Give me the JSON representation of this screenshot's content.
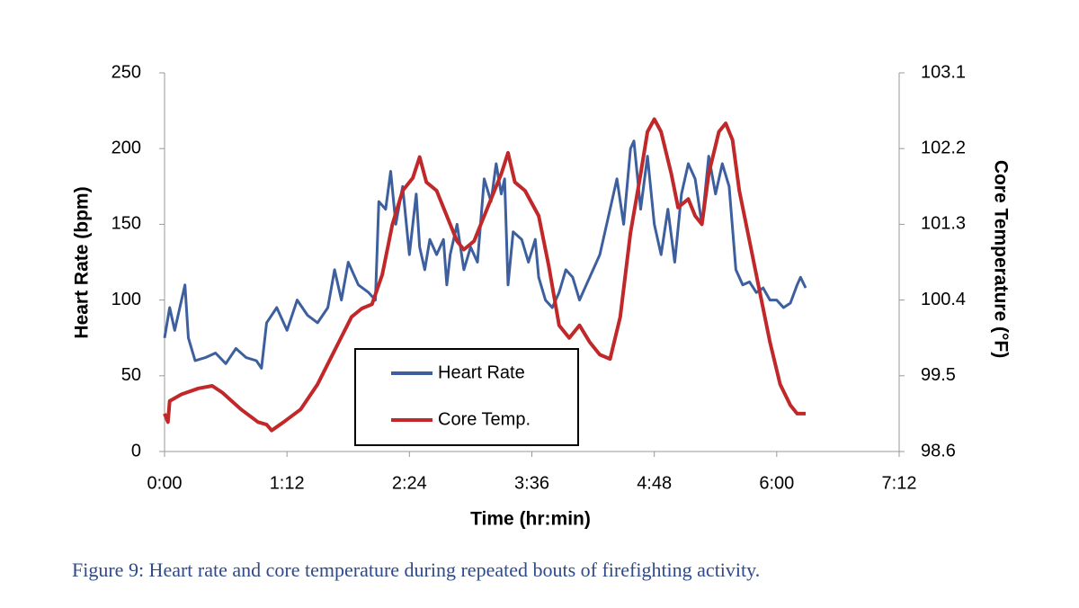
{
  "chart_data": {
    "type": "line",
    "caption": "Figure 9: Heart rate and core temperature during repeated bouts of firefighting activity.",
    "xlabel": "Time (hr:min)",
    "ylabel": "Heart Rate (bpm)",
    "y2label": "Core Temperature (°F)",
    "xlim": [
      0,
      432
    ],
    "xticks": [
      {
        "value": 0,
        "label": "0:00"
      },
      {
        "value": 72,
        "label": "1:12"
      },
      {
        "value": 144,
        "label": "2:24"
      },
      {
        "value": 216,
        "label": "3:36"
      },
      {
        "value": 288,
        "label": "4:48"
      },
      {
        "value": 360,
        "label": "6:00"
      },
      {
        "value": 432,
        "label": "7:12"
      }
    ],
    "ylim": [
      0,
      250
    ],
    "yticks": [
      0,
      50,
      100,
      150,
      200,
      250
    ],
    "y2lim": [
      98.6,
      103.1
    ],
    "y2ticks": [
      98.6,
      99.5,
      100.4,
      101.3,
      102.2,
      103.1
    ],
    "legend": "lower center",
    "series": [
      {
        "name": "Heart Rate",
        "color": "#3d5f9e",
        "x": [
          0,
          3,
          6,
          9,
          12,
          14,
          18,
          24,
          30,
          36,
          42,
          48,
          54,
          57,
          60,
          66,
          72,
          78,
          84,
          90,
          96,
          100,
          104,
          108,
          114,
          120,
          124,
          126,
          130,
          133,
          136,
          140,
          144,
          148,
          150,
          153,
          156,
          160,
          164,
          166,
          168,
          172,
          176,
          180,
          184,
          188,
          192,
          195,
          198,
          200,
          202,
          205,
          210,
          214,
          218,
          220,
          224,
          228,
          232,
          236,
          240,
          244,
          248,
          252,
          256,
          260,
          264,
          266,
          270,
          274,
          276,
          280,
          284,
          288,
          292,
          296,
          300,
          304,
          308,
          312,
          316,
          320,
          324,
          328,
          332,
          336,
          340,
          344,
          348,
          352,
          356,
          360,
          364,
          368,
          372,
          374,
          377
        ],
        "values": [
          75,
          95,
          80,
          95,
          110,
          75,
          60,
          62,
          65,
          58,
          68,
          62,
          60,
          55,
          85,
          95,
          80,
          100,
          90,
          85,
          95,
          120,
          100,
          125,
          110,
          105,
          100,
          165,
          160,
          185,
          150,
          175,
          130,
          170,
          135,
          120,
          140,
          130,
          140,
          110,
          130,
          150,
          120,
          135,
          125,
          180,
          165,
          190,
          170,
          180,
          110,
          145,
          140,
          125,
          140,
          115,
          100,
          95,
          105,
          120,
          115,
          100,
          110,
          120,
          130,
          150,
          170,
          180,
          150,
          200,
          205,
          160,
          195,
          150,
          130,
          160,
          125,
          170,
          190,
          180,
          150,
          195,
          170,
          190,
          175,
          120,
          110,
          112,
          105,
          108,
          100,
          100,
          95,
          98,
          110,
          115,
          108
        ]
      },
      {
        "name": "Core Temp.",
        "color": "#c0282a",
        "axis": "y2",
        "x": [
          0,
          2,
          3,
          10,
          20,
          28,
          34,
          45,
          55,
          60,
          63,
          70,
          80,
          90,
          100,
          110,
          116,
          122,
          128,
          134,
          140,
          146,
          150,
          154,
          160,
          166,
          172,
          176,
          182,
          190,
          198,
          202,
          206,
          212,
          220,
          226,
          232,
          238,
          244,
          250,
          256,
          262,
          268,
          274,
          280,
          284,
          288,
          292,
          298,
          302,
          308,
          312,
          316,
          320,
          326,
          330,
          334,
          338,
          344,
          350,
          356,
          362,
          368,
          372,
          377
        ],
        "values": [
          99.05,
          98.95,
          99.2,
          99.28,
          99.35,
          99.38,
          99.3,
          99.1,
          98.95,
          98.92,
          98.85,
          98.95,
          99.1,
          99.4,
          99.8,
          100.2,
          100.3,
          100.35,
          100.7,
          101.3,
          101.7,
          101.85,
          102.1,
          101.8,
          101.7,
          101.4,
          101.1,
          101.0,
          101.1,
          101.5,
          101.9,
          102.15,
          101.8,
          101.7,
          101.4,
          100.8,
          100.1,
          99.95,
          100.1,
          99.9,
          99.75,
          99.7,
          100.2,
          101.2,
          101.9,
          102.4,
          102.55,
          102.4,
          101.9,
          101.5,
          101.6,
          101.4,
          101.3,
          101.9,
          102.4,
          102.5,
          102.3,
          101.7,
          101.1,
          100.5,
          99.9,
          99.4,
          99.15,
          99.05,
          99.05
        ]
      }
    ]
  }
}
